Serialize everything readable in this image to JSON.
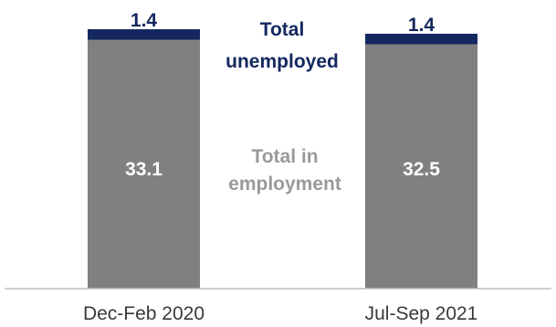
{
  "chart_data": {
    "type": "bar",
    "stacked": true,
    "categories": [
      "Dec-Feb 2020",
      "Jul-Sep 2021"
    ],
    "series": [
      {
        "name": "Total in employment",
        "values": [
          33.1,
          32.5
        ],
        "color": "#808080"
      },
      {
        "name": "Total unemployed",
        "values": [
          1.4,
          1.4
        ],
        "color": "#14285f"
      }
    ],
    "annotations": {
      "unemployed_line1": "Total",
      "unemployed_line2": "unemployed",
      "employment_line1": "Total in",
      "employment_line2": "employment"
    },
    "title": "",
    "xlabel": "",
    "ylabel": "",
    "ylim": [
      0,
      34.5
    ],
    "grid": false,
    "legend": "inline labels between bars"
  }
}
